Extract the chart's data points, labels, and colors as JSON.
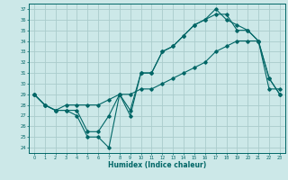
{
  "title": "",
  "xlabel": "Humidex (Indice chaleur)",
  "ylabel": "",
  "bg_color": "#cce8e8",
  "grid_color": "#aacccc",
  "line_color": "#006666",
  "xlim": [
    -0.5,
    23.5
  ],
  "ylim": [
    23.5,
    37.5
  ],
  "yticks": [
    24,
    25,
    26,
    27,
    28,
    29,
    30,
    31,
    32,
    33,
    34,
    35,
    36,
    37
  ],
  "xticks": [
    0,
    1,
    2,
    3,
    4,
    5,
    6,
    7,
    8,
    9,
    10,
    11,
    12,
    13,
    14,
    15,
    16,
    17,
    18,
    19,
    20,
    21,
    22,
    23
  ],
  "series1": [
    29,
    28,
    27.5,
    27.5,
    27,
    25.0,
    25.0,
    24.0,
    29,
    27,
    31,
    31,
    33,
    33.5,
    34.5,
    35.5,
    36,
    37,
    36,
    35.5,
    35,
    34,
    30.5,
    29
  ],
  "series2": [
    29,
    28,
    27.5,
    27.5,
    27.5,
    25.5,
    25.5,
    27.0,
    29,
    27.5,
    31,
    31,
    33,
    33.5,
    34.5,
    35.5,
    36,
    36.5,
    36.5,
    35,
    35,
    34,
    30.5,
    29
  ],
  "series3": [
    29,
    28,
    27.5,
    28,
    28,
    28,
    28,
    28.5,
    29,
    29,
    29.5,
    29.5,
    30,
    30.5,
    31,
    31.5,
    32,
    33,
    33.5,
    34,
    34,
    34,
    29.5,
    29.5
  ]
}
